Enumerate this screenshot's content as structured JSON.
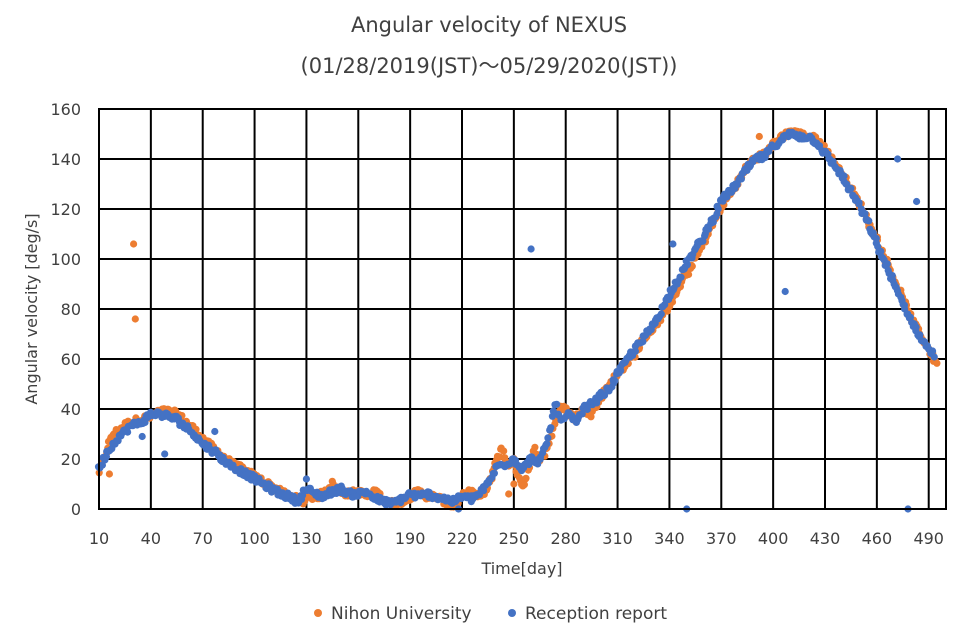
{
  "chart_data": {
    "type": "scatter",
    "title": "Angular velocity of NEXUS",
    "subtitle": "(01/28/2019(JST)～05/29/2020(JST))",
    "xlabel": "Time[day]",
    "ylabel": "Angular velocity [deg/s]",
    "xlim": [
      10,
      500
    ],
    "ylim": [
      0,
      160
    ],
    "x_ticks": [
      10,
      40,
      70,
      100,
      130,
      160,
      190,
      220,
      250,
      280,
      310,
      340,
      370,
      400,
      430,
      460,
      490
    ],
    "y_ticks": [
      0,
      20,
      40,
      60,
      80,
      100,
      120,
      140,
      160
    ],
    "grid": true,
    "legend_position": "bottom",
    "series": [
      {
        "name": "Nihon University",
        "color": "#ED7D31",
        "trend": [
          [
            10,
            15
          ],
          [
            12,
            18
          ],
          [
            15,
            25
          ],
          [
            18,
            30
          ],
          [
            22,
            32
          ],
          [
            26,
            34
          ],
          [
            30,
            35
          ],
          [
            35,
            36
          ],
          [
            40,
            37
          ],
          [
            45,
            39
          ],
          [
            50,
            39
          ],
          [
            55,
            38
          ],
          [
            60,
            35
          ],
          [
            65,
            32
          ],
          [
            70,
            28
          ],
          [
            75,
            25
          ],
          [
            80,
            22
          ],
          [
            85,
            19
          ],
          [
            90,
            17
          ],
          [
            95,
            15
          ],
          [
            100,
            13
          ],
          [
            105,
            11
          ],
          [
            110,
            9
          ],
          [
            115,
            7
          ],
          [
            120,
            5
          ],
          [
            125,
            4
          ],
          [
            128,
            3
          ],
          [
            132,
            6
          ],
          [
            135,
            4
          ],
          [
            140,
            7
          ],
          [
            145,
            10
          ],
          [
            150,
            7
          ],
          [
            155,
            6
          ],
          [
            160,
            7
          ],
          [
            165,
            5
          ],
          [
            170,
            7
          ],
          [
            175,
            4
          ],
          [
            180,
            2
          ],
          [
            185,
            3
          ],
          [
            190,
            5
          ],
          [
            195,
            7
          ],
          [
            200,
            5
          ],
          [
            205,
            5
          ],
          [
            210,
            3
          ],
          [
            215,
            1
          ],
          [
            220,
            5
          ],
          [
            225,
            7
          ],
          [
            230,
            5
          ],
          [
            235,
            8
          ],
          [
            240,
            20
          ],
          [
            243,
            24
          ],
          [
            246,
            18
          ],
          [
            250,
            19
          ],
          [
            253,
            13
          ],
          [
            255,
            9
          ],
          [
            258,
            15
          ],
          [
            262,
            24
          ],
          [
            265,
            20
          ],
          [
            268,
            22
          ],
          [
            272,
            30
          ],
          [
            276,
            40
          ],
          [
            280,
            40
          ],
          [
            285,
            36
          ],
          [
            290,
            40
          ],
          [
            295,
            38
          ],
          [
            300,
            44
          ],
          [
            305,
            50
          ],
          [
            310,
            54
          ],
          [
            315,
            58
          ],
          [
            320,
            62
          ],
          [
            325,
            68
          ],
          [
            330,
            72
          ],
          [
            335,
            76
          ],
          [
            340,
            82
          ],
          [
            345,
            88
          ],
          [
            350,
            94
          ],
          [
            355,
            100
          ],
          [
            360,
            107
          ],
          [
            365,
            114
          ],
          [
            370,
            121
          ],
          [
            375,
            126
          ],
          [
            380,
            131
          ],
          [
            385,
            137
          ],
          [
            390,
            140
          ],
          [
            395,
            142
          ],
          [
            400,
            146
          ],
          [
            405,
            149
          ],
          [
            410,
            151
          ],
          [
            415,
            150
          ],
          [
            420,
            149
          ],
          [
            425,
            148
          ],
          [
            430,
            144
          ],
          [
            435,
            139
          ],
          [
            440,
            134
          ],
          [
            445,
            128
          ],
          [
            450,
            122
          ],
          [
            455,
            115
          ],
          [
            460,
            108
          ],
          [
            465,
            100
          ],
          [
            470,
            92
          ],
          [
            475,
            84
          ],
          [
            480,
            76
          ],
          [
            485,
            70
          ],
          [
            490,
            64
          ],
          [
            493,
            60
          ],
          [
            495,
            58
          ]
        ],
        "outliers": [
          [
            30,
            106
          ],
          [
            31,
            76
          ],
          [
            16,
            14
          ],
          [
            392,
            149
          ],
          [
            250,
            10
          ],
          [
            247,
            6
          ]
        ]
      },
      {
        "name": "Reception report",
        "color": "#4472C4",
        "trend": [
          [
            10,
            16
          ],
          [
            14,
            22
          ],
          [
            20,
            28
          ],
          [
            28,
            33
          ],
          [
            35,
            35
          ],
          [
            40,
            38
          ],
          [
            45,
            38
          ],
          [
            50,
            37
          ],
          [
            55,
            36
          ],
          [
            60,
            33
          ],
          [
            65,
            30
          ],
          [
            70,
            26
          ],
          [
            75,
            24
          ],
          [
            80,
            21
          ],
          [
            85,
            18
          ],
          [
            90,
            16
          ],
          [
            95,
            14
          ],
          [
            100,
            12
          ],
          [
            105,
            10
          ],
          [
            110,
            8
          ],
          [
            115,
            6
          ],
          [
            120,
            5
          ],
          [
            125,
            3
          ],
          [
            130,
            8
          ],
          [
            135,
            6
          ],
          [
            140,
            5
          ],
          [
            145,
            7
          ],
          [
            150,
            8
          ],
          [
            155,
            6
          ],
          [
            160,
            6
          ],
          [
            165,
            7
          ],
          [
            170,
            4
          ],
          [
            175,
            3
          ],
          [
            180,
            2
          ],
          [
            185,
            4
          ],
          [
            190,
            6
          ],
          [
            195,
            5
          ],
          [
            200,
            6
          ],
          [
            205,
            5
          ],
          [
            210,
            4
          ],
          [
            215,
            3
          ],
          [
            220,
            5
          ],
          [
            225,
            4
          ],
          [
            230,
            6
          ],
          [
            235,
            10
          ],
          [
            240,
            17
          ],
          [
            245,
            18
          ],
          [
            250,
            20
          ],
          [
            255,
            16
          ],
          [
            260,
            20
          ],
          [
            265,
            19
          ],
          [
            270,
            28
          ],
          [
            274,
            42
          ],
          [
            278,
            35
          ],
          [
            282,
            38
          ],
          [
            286,
            34
          ],
          [
            290,
            40
          ],
          [
            295,
            42
          ],
          [
            300,
            45
          ],
          [
            305,
            48
          ],
          [
            310,
            54
          ],
          [
            315,
            59
          ],
          [
            320,
            64
          ],
          [
            325,
            68
          ],
          [
            330,
            73
          ],
          [
            335,
            79
          ],
          [
            340,
            86
          ],
          [
            345,
            92
          ],
          [
            350,
            98
          ],
          [
            355,
            104
          ],
          [
            360,
            109
          ],
          [
            365,
            116
          ],
          [
            370,
            123
          ],
          [
            375,
            127
          ],
          [
            380,
            131
          ],
          [
            385,
            136
          ],
          [
            390,
            140
          ],
          [
            395,
            141
          ],
          [
            400,
            145
          ],
          [
            405,
            148
          ],
          [
            410,
            150
          ],
          [
            415,
            149
          ],
          [
            420,
            149
          ],
          [
            425,
            147
          ],
          [
            430,
            142
          ],
          [
            435,
            138
          ],
          [
            440,
            133
          ],
          [
            445,
            127
          ],
          [
            450,
            121
          ],
          [
            455,
            114
          ],
          [
            460,
            106
          ],
          [
            465,
            98
          ],
          [
            470,
            90
          ],
          [
            475,
            82
          ],
          [
            480,
            75
          ],
          [
            485,
            69
          ],
          [
            490,
            64
          ],
          [
            494,
            61
          ]
        ],
        "outliers": [
          [
            35,
            29
          ],
          [
            48,
            22
          ],
          [
            77,
            31
          ],
          [
            260,
            104
          ],
          [
            342,
            106
          ],
          [
            350,
            0
          ],
          [
            407,
            87
          ],
          [
            472,
            140
          ],
          [
            478,
            0
          ],
          [
            483,
            123
          ],
          [
            218,
            0
          ],
          [
            130,
            12
          ]
        ]
      }
    ]
  }
}
